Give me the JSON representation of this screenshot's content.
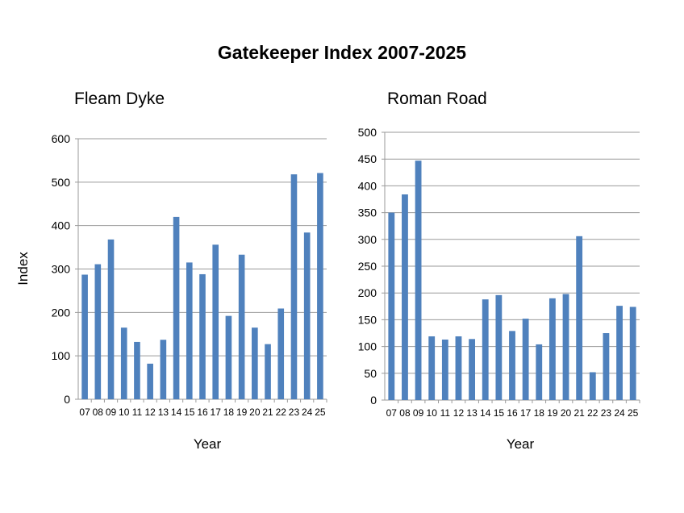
{
  "title": "Gatekeeper Index 2007-2025",
  "colors": {
    "bar": "#4f81bd",
    "grid": "#9a9a9a",
    "axis": "#9a9a9a"
  },
  "chart_data": [
    {
      "type": "bar",
      "title": "Fleam Dyke",
      "xlabel": "Year",
      "ylabel": "Index",
      "ylim": [
        0,
        600
      ],
      "yticks": [
        "0",
        "100",
        "200",
        "300",
        "400",
        "500",
        "600"
      ],
      "grid": true,
      "categories": [
        "07",
        "08",
        "09",
        "10",
        "11",
        "12",
        "13",
        "14",
        "15",
        "16",
        "17",
        "18",
        "19",
        "20",
        "21",
        "22",
        "23",
        "24",
        "25"
      ],
      "values": [
        287,
        311,
        368,
        165,
        132,
        82,
        137,
        420,
        315,
        288,
        356,
        192,
        333,
        165,
        127,
        209,
        518,
        384,
        521
      ]
    },
    {
      "type": "bar",
      "title": "Roman Road",
      "xlabel": "Year",
      "ylabel": "",
      "ylim": [
        0,
        500
      ],
      "yticks": [
        "0",
        "50",
        "100",
        "150",
        "200",
        "250",
        "300",
        "350",
        "400",
        "450",
        "500"
      ],
      "grid": true,
      "categories": [
        "07",
        "08",
        "09",
        "10",
        "11",
        "12",
        "13",
        "14",
        "15",
        "16",
        "17",
        "18",
        "19",
        "20",
        "21",
        "22",
        "23",
        "24",
        "25"
      ],
      "values": [
        350,
        384,
        447,
        119,
        113,
        119,
        114,
        188,
        196,
        129,
        152,
        104,
        190,
        198,
        306,
        52,
        125,
        176,
        174
      ]
    }
  ]
}
